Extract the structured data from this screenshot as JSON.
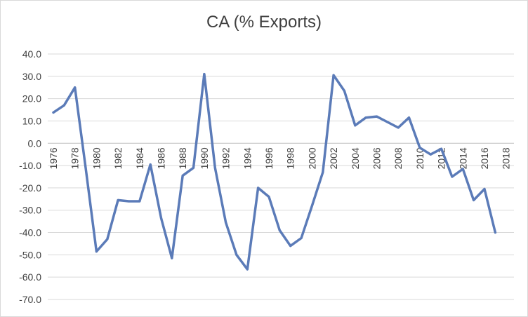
{
  "chart_data": {
    "type": "line",
    "title": "CA (% Exports)",
    "xlabel": "",
    "ylabel": "",
    "ylim": [
      -70,
      40
    ],
    "yticks": [
      40,
      30,
      20,
      10,
      0,
      -10,
      -20,
      -30,
      -40,
      -50,
      -60,
      -70
    ],
    "ytick_labels": [
      "40.0",
      "30.0",
      "20.0",
      "10.0",
      "0.0",
      "-10.0",
      "-20.0",
      "-30.0",
      "-40.0",
      "-50.0",
      "-60.0",
      "-70.0"
    ],
    "x": [
      1976,
      1977,
      1978,
      1979,
      1980,
      1981,
      1982,
      1983,
      1984,
      1985,
      1986,
      1987,
      1988,
      1989,
      1990,
      1991,
      1992,
      1993,
      1994,
      1995,
      1996,
      1997,
      1998,
      1999,
      2000,
      2001,
      2002,
      2003,
      2004,
      2005,
      2006,
      2007,
      2008,
      2009,
      2010,
      2011,
      2012,
      2013,
      2014,
      2015,
      2016,
      2017
    ],
    "xtick_labels": [
      "1976",
      "1978",
      "1980",
      "1982",
      "1984",
      "1986",
      "1988",
      "1990",
      "1992",
      "1994",
      "1996",
      "1998",
      "2000",
      "2002",
      "2004",
      "2006",
      "2008",
      "2010",
      "2012",
      "2014",
      "2016",
      "2018"
    ],
    "xtick_years": [
      1976,
      1978,
      1980,
      1982,
      1984,
      1986,
      1988,
      1990,
      1992,
      1994,
      1996,
      1998,
      2000,
      2002,
      2004,
      2006,
      2008,
      2010,
      2012,
      2014,
      2016,
      2018
    ],
    "series": [
      {
        "values": [
          13.8,
          17.0,
          25.0,
          -11.0,
          -48.5,
          -43.0,
          -25.5,
          -26.0,
          -26.0,
          -9.5,
          -33.5,
          -51.5,
          -14.5,
          -11.0,
          31.0,
          -11.0,
          -35.5,
          -50.0,
          -56.5,
          -20.0,
          -24.0,
          -39.0,
          -46.0,
          -42.5,
          -28.0,
          -13.0,
          30.5,
          23.5,
          8.0,
          11.5,
          12.0,
          9.5,
          7.0,
          11.5,
          -2.0,
          -5.0,
          -2.5,
          -15.0,
          -11.5,
          -25.5,
          -20.5,
          -40.0
        ],
        "color": "#5b7bb8"
      }
    ],
    "grid": "horizontal",
    "legend": "none"
  }
}
